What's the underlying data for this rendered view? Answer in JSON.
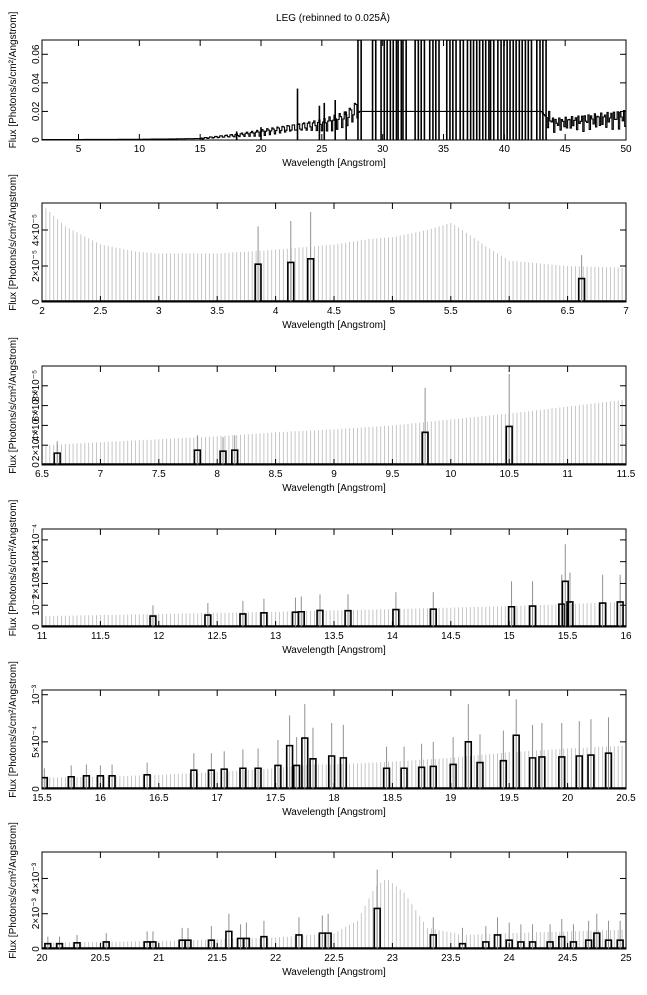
{
  "figure_title": "LEG (rebinned to 0.025Å)",
  "chart_data": [
    {
      "type": "histogram",
      "xlabel": "Wavelength [Angstrom]",
      "ylabel": "Flux [Photons/s/cm²/Angstrom]",
      "xlim": [
        2,
        50
      ],
      "ylim": [
        0,
        0.07
      ],
      "xticks": [
        5,
        10,
        15,
        20,
        25,
        30,
        35,
        40,
        45,
        50
      ],
      "yticks": [
        0,
        0.02,
        0.04,
        0.06
      ],
      "ytick_labels": [
        "0",
        "0.02",
        "0.04",
        "0.06"
      ],
      "continuum": [
        [
          2,
          0.0003
        ],
        [
          10,
          0.0005
        ],
        [
          15,
          0.001
        ],
        [
          18,
          0.003
        ],
        [
          20,
          0.005
        ],
        [
          22,
          0.007
        ],
        [
          25,
          0.01
        ],
        [
          27,
          0.014
        ],
        [
          28,
          0.02
        ],
        [
          43,
          0.02
        ],
        [
          44,
          0.01
        ],
        [
          47,
          0.012
        ],
        [
          50,
          0.014
        ]
      ],
      "spikes": [
        [
          18,
          0.006
        ],
        [
          20,
          0.009
        ],
        [
          23,
          0.036
        ],
        [
          24.8,
          0.024
        ],
        [
          25.2,
          0.026
        ],
        [
          26.1,
          0.028
        ],
        [
          27,
          0.02
        ]
      ],
      "full_height_bins": [
        28.1,
        29.3,
        30.0,
        30.5,
        31.0,
        31.4,
        31.8,
        32.8,
        33.3,
        34.0,
        34.5,
        35.4,
        35.9,
        36.5,
        37.1,
        37.6,
        38.1,
        38.6,
        39.0,
        39.6,
        40.1,
        40.6,
        41.1,
        41.6,
        42.1,
        42.8,
        43.3
      ]
    },
    {
      "type": "histogram",
      "xlabel": "Wavelength [Angstrom]",
      "ylabel": "Flux [Photons/s/cm²/Angstrom]",
      "xlim": [
        2,
        7
      ],
      "ylim": [
        0,
        5.5e-05
      ],
      "xticks": [
        2,
        2.5,
        3,
        3.5,
        4,
        4.5,
        5,
        5.5,
        6,
        6.5,
        7
      ],
      "yticks": [
        0,
        2e-05,
        4e-05
      ],
      "ytick_labels": [
        "0",
        "2×10⁻⁵",
        "4×10⁻⁵"
      ],
      "error_curve": [
        [
          2,
          5.4e-05
        ],
        [
          2.2,
          4.2e-05
        ],
        [
          2.5,
          3.2e-05
        ],
        [
          2.8,
          2.8e-05
        ],
        [
          3,
          2.7e-05
        ],
        [
          3.5,
          2.7e-05
        ],
        [
          4,
          2.9e-05
        ],
        [
          4.5,
          3.2e-05
        ],
        [
          4.8,
          3.5e-05
        ],
        [
          5,
          3.6e-05
        ],
        [
          5.3,
          4e-05
        ],
        [
          5.5,
          4.4e-05
        ],
        [
          5.6,
          4e-05
        ],
        [
          5.8,
          3.1e-05
        ],
        [
          6,
          2.3e-05
        ],
        [
          6.5,
          2e-05
        ],
        [
          7,
          1.9e-05
        ]
      ],
      "features": [
        [
          3.85,
          2.1e-05,
          4.2e-05
        ],
        [
          4.13,
          2.2e-05,
          4.5e-05
        ],
        [
          4.3,
          2.4e-05,
          5e-05
        ],
        [
          6.62,
          1.3e-05,
          2.6e-05
        ]
      ]
    },
    {
      "type": "histogram",
      "xlabel": "Wavelength [Angstrom]",
      "ylabel": "Flux [Photons/s/cm²/Angstrom]",
      "xlim": [
        6.5,
        11.5
      ],
      "ylim": [
        0,
        0.0001
      ],
      "xticks": [
        6.5,
        7,
        7.5,
        8,
        8.5,
        9,
        9.5,
        10,
        10.5,
        11,
        11.5
      ],
      "yticks": [
        0,
        2e-05,
        4e-05,
        6e-05,
        8e-05
      ],
      "ytick_labels": [
        "0",
        "2×10⁻⁵",
        "4×10⁻⁵",
        "6×10⁻⁵",
        "8×10⁻⁵"
      ],
      "error_curve": [
        [
          6.5,
          2e-05
        ],
        [
          7,
          2.3e-05
        ],
        [
          7.5,
          2.6e-05
        ],
        [
          8,
          2.9e-05
        ],
        [
          8.5,
          3.3e-05
        ],
        [
          9,
          3.6e-05
        ],
        [
          9.5,
          4e-05
        ],
        [
          10,
          4.6e-05
        ],
        [
          10.5,
          5.2e-05
        ],
        [
          11,
          5.9e-05
        ],
        [
          11.5,
          6.6e-05
        ]
      ],
      "features": [
        [
          6.63,
          1.2e-05,
          2.4e-05
        ],
        [
          7.83,
          1.5e-05,
          3e-05
        ],
        [
          8.05,
          1.4e-05,
          2.8e-05
        ],
        [
          8.15,
          1.5e-05,
          3e-05
        ],
        [
          9.78,
          3.3e-05,
          7.8e-05
        ],
        [
          10.5,
          3.9e-05,
          9.2e-05
        ]
      ]
    },
    {
      "type": "histogram",
      "xlabel": "Wavelength [Angstrom]",
      "ylabel": "Flux [Photons/s/cm²/Angstrom]",
      "xlim": [
        11,
        16
      ],
      "ylim": [
        0,
        0.00045
      ],
      "xticks": [
        11,
        11.5,
        12,
        12.5,
        13,
        13.5,
        14,
        14.5,
        15,
        15.5,
        16
      ],
      "yticks": [
        0,
        0.0001,
        0.0002,
        0.0003,
        0.0004
      ],
      "ytick_labels": [
        "0",
        "10⁻⁴",
        "2×10⁻⁴",
        "3×10⁻⁴",
        "4×10⁻⁴"
      ],
      "error_curve": [
        [
          11,
          5e-05
        ],
        [
          12,
          6e-05
        ],
        [
          13,
          7e-05
        ],
        [
          14,
          8.2e-05
        ],
        [
          15,
          9.6e-05
        ],
        [
          16,
          0.000115
        ]
      ],
      "features": [
        [
          11.95,
          5e-05,
          0.0001
        ],
        [
          12.42,
          5.5e-05,
          0.00011
        ],
        [
          12.72,
          6e-05,
          0.00012
        ],
        [
          12.9,
          6.5e-05,
          0.00013
        ],
        [
          13.17,
          6.8e-05,
          0.000135
        ],
        [
          13.22,
          7e-05,
          0.00014
        ],
        [
          13.38,
          7.6e-05,
          0.00015
        ],
        [
          13.62,
          7.5e-05,
          0.00015
        ],
        [
          14.03,
          8e-05,
          0.00016
        ],
        [
          14.35,
          8.2e-05,
          0.00016
        ],
        [
          15.02,
          9.3e-05,
          0.00021
        ],
        [
          15.2,
          9.6e-05,
          0.00021
        ],
        [
          15.45,
          0.000105,
          0.00024
        ],
        [
          15.48,
          0.00021,
          0.00038
        ],
        [
          15.52,
          0.000115,
          0.00025
        ],
        [
          15.8,
          0.00011,
          0.00024
        ],
        [
          15.95,
          0.000115,
          0.00024
        ]
      ]
    },
    {
      "type": "histogram",
      "xlabel": "Wavelength [Angstrom]",
      "ylabel": "Flux [Photons/s/cm²/Angstrom]",
      "xlim": [
        15.5,
        20.5
      ],
      "ylim": [
        0,
        0.00105
      ],
      "xticks": [
        15.5,
        16,
        16.5,
        17,
        17.5,
        18,
        18.5,
        19,
        19.5,
        20,
        20.5
      ],
      "yticks": [
        0,
        0.0005,
        0.001
      ],
      "ytick_labels": [
        "0",
        "5×10⁻⁴",
        "10⁻³"
      ],
      "error_curve": [
        [
          15.5,
          0.00012
        ],
        [
          16,
          0.00013
        ],
        [
          16.5,
          0.00015
        ],
        [
          17,
          0.00018
        ],
        [
          17.5,
          0.00022
        ],
        [
          17.8,
          0.00026
        ],
        [
          18,
          0.00026
        ],
        [
          18.5,
          0.00029
        ],
        [
          19,
          0.00033
        ],
        [
          19.5,
          0.00039
        ],
        [
          20,
          0.00043
        ],
        [
          20.5,
          0.00046
        ]
      ],
      "features": [
        [
          15.52,
          0.00012,
          0.00022
        ],
        [
          15.75,
          0.00013,
          0.00025
        ],
        [
          15.88,
          0.00014,
          0.00026
        ],
        [
          16,
          0.00014,
          0.00025
        ],
        [
          16.1,
          0.00014,
          0.00026
        ],
        [
          16.4,
          0.00015,
          0.00028
        ],
        [
          16.8,
          0.0002,
          0.00038
        ],
        [
          16.95,
          0.0002,
          0.00038
        ],
        [
          17.06,
          0.00021,
          0.0004
        ],
        [
          17.22,
          0.00022,
          0.00042
        ],
        [
          17.35,
          0.00022,
          0.00043
        ],
        [
          17.52,
          0.00025,
          0.00052
        ],
        [
          17.62,
          0.00046,
          0.00078
        ],
        [
          17.68,
          0.00025,
          0.00055
        ],
        [
          17.75,
          0.00054,
          0.0009
        ],
        [
          17.82,
          0.00032,
          0.00065
        ],
        [
          17.98,
          0.00035,
          0.0007
        ],
        [
          18.08,
          0.00033,
          0.00068
        ],
        [
          18.45,
          0.00022,
          0.00045
        ],
        [
          18.6,
          0.00022,
          0.00045
        ],
        [
          18.75,
          0.00023,
          0.00048
        ],
        [
          18.85,
          0.00024,
          0.0005
        ],
        [
          19.02,
          0.00026,
          0.00055
        ],
        [
          19.15,
          0.0005,
          0.0009
        ],
        [
          19.25,
          0.00028,
          0.00058
        ],
        [
          19.45,
          0.0003,
          0.00062
        ],
        [
          19.56,
          0.00057,
          0.00095
        ],
        [
          19.7,
          0.00033,
          0.00068
        ],
        [
          19.78,
          0.00034,
          0.0007
        ],
        [
          19.95,
          0.00034,
          0.0007
        ],
        [
          20.1,
          0.00035,
          0.00072
        ],
        [
          20.2,
          0.00036,
          0.00074
        ],
        [
          20.35,
          0.00038,
          0.00076
        ]
      ]
    },
    {
      "type": "histogram",
      "xlabel": "Wavelength [Angstrom]",
      "ylabel": "Flux [Photons/s/cm²/Angstrom]",
      "xlim": [
        20,
        25
      ],
      "ylim": [
        0,
        0.0055
      ],
      "xticks": [
        20,
        20.5,
        21,
        21.5,
        22,
        22.5,
        23,
        23.5,
        24,
        24.5,
        25
      ],
      "yticks": [
        0,
        0.002,
        0.004
      ],
      "ytick_labels": [
        "0",
        "2×10⁻³",
        "4×10⁻³"
      ],
      "error_curve": [
        [
          20,
          0.00035
        ],
        [
          21,
          0.00045
        ],
        [
          22,
          0.00065
        ],
        [
          22.5,
          0.0009
        ],
        [
          22.7,
          0.0016
        ],
        [
          22.85,
          0.0035
        ],
        [
          22.95,
          0.004
        ],
        [
          23.1,
          0.0032
        ],
        [
          23.3,
          0.0012
        ],
        [
          23.6,
          0.0008
        ],
        [
          24,
          0.0009
        ],
        [
          25,
          0.0011
        ]
      ],
      "features": [
        [
          20.05,
          0.0003,
          0.0007
        ],
        [
          20.15,
          0.0003,
          0.0007
        ],
        [
          20.3,
          0.00035,
          0.0008
        ],
        [
          20.55,
          0.0004,
          0.0009
        ],
        [
          20.9,
          0.0004,
          0.001
        ],
        [
          20.95,
          0.0004,
          0.001
        ],
        [
          21.2,
          0.0005,
          0.0012
        ],
        [
          21.25,
          0.0005,
          0.0012
        ],
        [
          21.45,
          0.0005,
          0.0013
        ],
        [
          21.6,
          0.001,
          0.002
        ],
        [
          21.7,
          0.0006,
          0.0014
        ],
        [
          21.75,
          0.0006,
          0.0015
        ],
        [
          21.9,
          0.0007,
          0.0016
        ],
        [
          22.2,
          0.0008,
          0.0018
        ],
        [
          22.4,
          0.0009,
          0.0019
        ],
        [
          22.45,
          0.0009,
          0.002
        ],
        [
          22.87,
          0.0023,
          0.0045
        ],
        [
          23.35,
          0.0008,
          0.0018
        ],
        [
          23.6,
          0.0003,
          0.0012
        ],
        [
          23.8,
          0.0004,
          0.0013
        ],
        [
          23.9,
          0.0008,
          0.0018
        ],
        [
          24.0,
          0.0005,
          0.0015
        ],
        [
          24.1,
          0.0004,
          0.0014
        ],
        [
          24.2,
          0.0004,
          0.0014
        ],
        [
          24.35,
          0.0004,
          0.0014
        ],
        [
          24.45,
          0.0007,
          0.0017
        ],
        [
          24.55,
          0.0004,
          0.0014
        ],
        [
          24.68,
          0.0005,
          0.0016
        ],
        [
          24.75,
          0.0009,
          0.002
        ],
        [
          24.85,
          0.0005,
          0.0016
        ],
        [
          24.95,
          0.0005,
          0.0016
        ]
      ]
    }
  ]
}
